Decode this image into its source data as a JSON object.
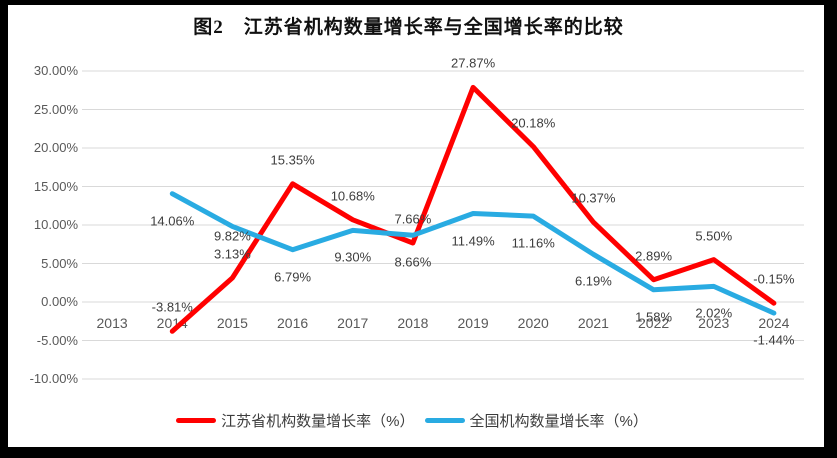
{
  "chart_data": {
    "type": "line",
    "title": "图2　江苏省机构数量增长率与全国增长率的比较",
    "categories": [
      "2013",
      "2014",
      "2015",
      "2016",
      "2017",
      "2018",
      "2019",
      "2020",
      "2021",
      "2022",
      "2023",
      "2024"
    ],
    "series": [
      {
        "name": "江苏省机构数量增长率（%）",
        "color": "#FF0000",
        "values": [
          null,
          -3.81,
          3.13,
          15.35,
          10.68,
          7.66,
          27.87,
          20.18,
          10.37,
          2.89,
          5.5,
          -0.15
        ],
        "labels": [
          null,
          "-3.81%",
          "3.13%",
          "15.35%",
          "10.68%",
          "7.66%",
          "27.87%",
          "20.18%",
          "10.37%",
          "2.89%",
          "5.50%",
          "-0.15%"
        ],
        "label_position": "above"
      },
      {
        "name": "全国机构数量增长率（%）",
        "color": "#29ABE2",
        "values": [
          null,
          14.06,
          9.82,
          6.79,
          9.3,
          8.66,
          11.49,
          11.16,
          6.19,
          1.58,
          2.02,
          -1.44
        ],
        "labels": [
          null,
          "14.06%",
          "9.82%",
          "6.79%",
          "9.30%",
          "8.66%",
          "11.49%",
          "11.16%",
          "6.19%",
          "1.58%",
          "2.02%",
          "-1.44%"
        ],
        "label_position": "below",
        "label_dy_overrides": {
          "2": 10
        }
      }
    ],
    "y_axis": {
      "min": -10,
      "max": 30,
      "step": 5,
      "tick_labels": [
        "30.00%",
        "25.00%",
        "20.00%",
        "15.00%",
        "10.00%",
        "5.00%",
        "0.00%",
        "-5.00%",
        "-10.00%"
      ]
    },
    "grid": true,
    "gridline_color": "#D9D9D9",
    "legend_position": "bottom"
  }
}
